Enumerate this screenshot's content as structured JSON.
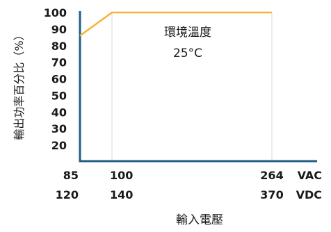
{
  "chart_data": {
    "type": "line",
    "title": "",
    "ylabel": "輸出功率百分比（%）",
    "xlabel": "輸入電壓",
    "x_ticks": [
      {
        "x": 85,
        "vac": "85",
        "vdc": "120"
      },
      {
        "x": 100,
        "vac": "100",
        "vdc": "140"
      },
      {
        "x": 264,
        "vac": "264",
        "vdc": "370"
      }
    ],
    "x_unit_labels": {
      "vac": "VAC",
      "vdc": "VDC"
    },
    "y_ticks": [
      20,
      30,
      40,
      50,
      60,
      70,
      80,
      90,
      100
    ],
    "xlim": [
      85,
      264
    ],
    "ylim": [
      10,
      100
    ],
    "grid": "vertical",
    "series": [
      {
        "x": [
          85,
          100,
          264
        ],
        "values": [
          86,
          100,
          100
        ],
        "color": "#f5b335"
      }
    ],
    "annotations": [
      "環境溫度",
      "25°C"
    ]
  },
  "colors": {
    "axis": "#1f5f86",
    "grid": "#d9d9d9",
    "line": "#f5b335"
  }
}
